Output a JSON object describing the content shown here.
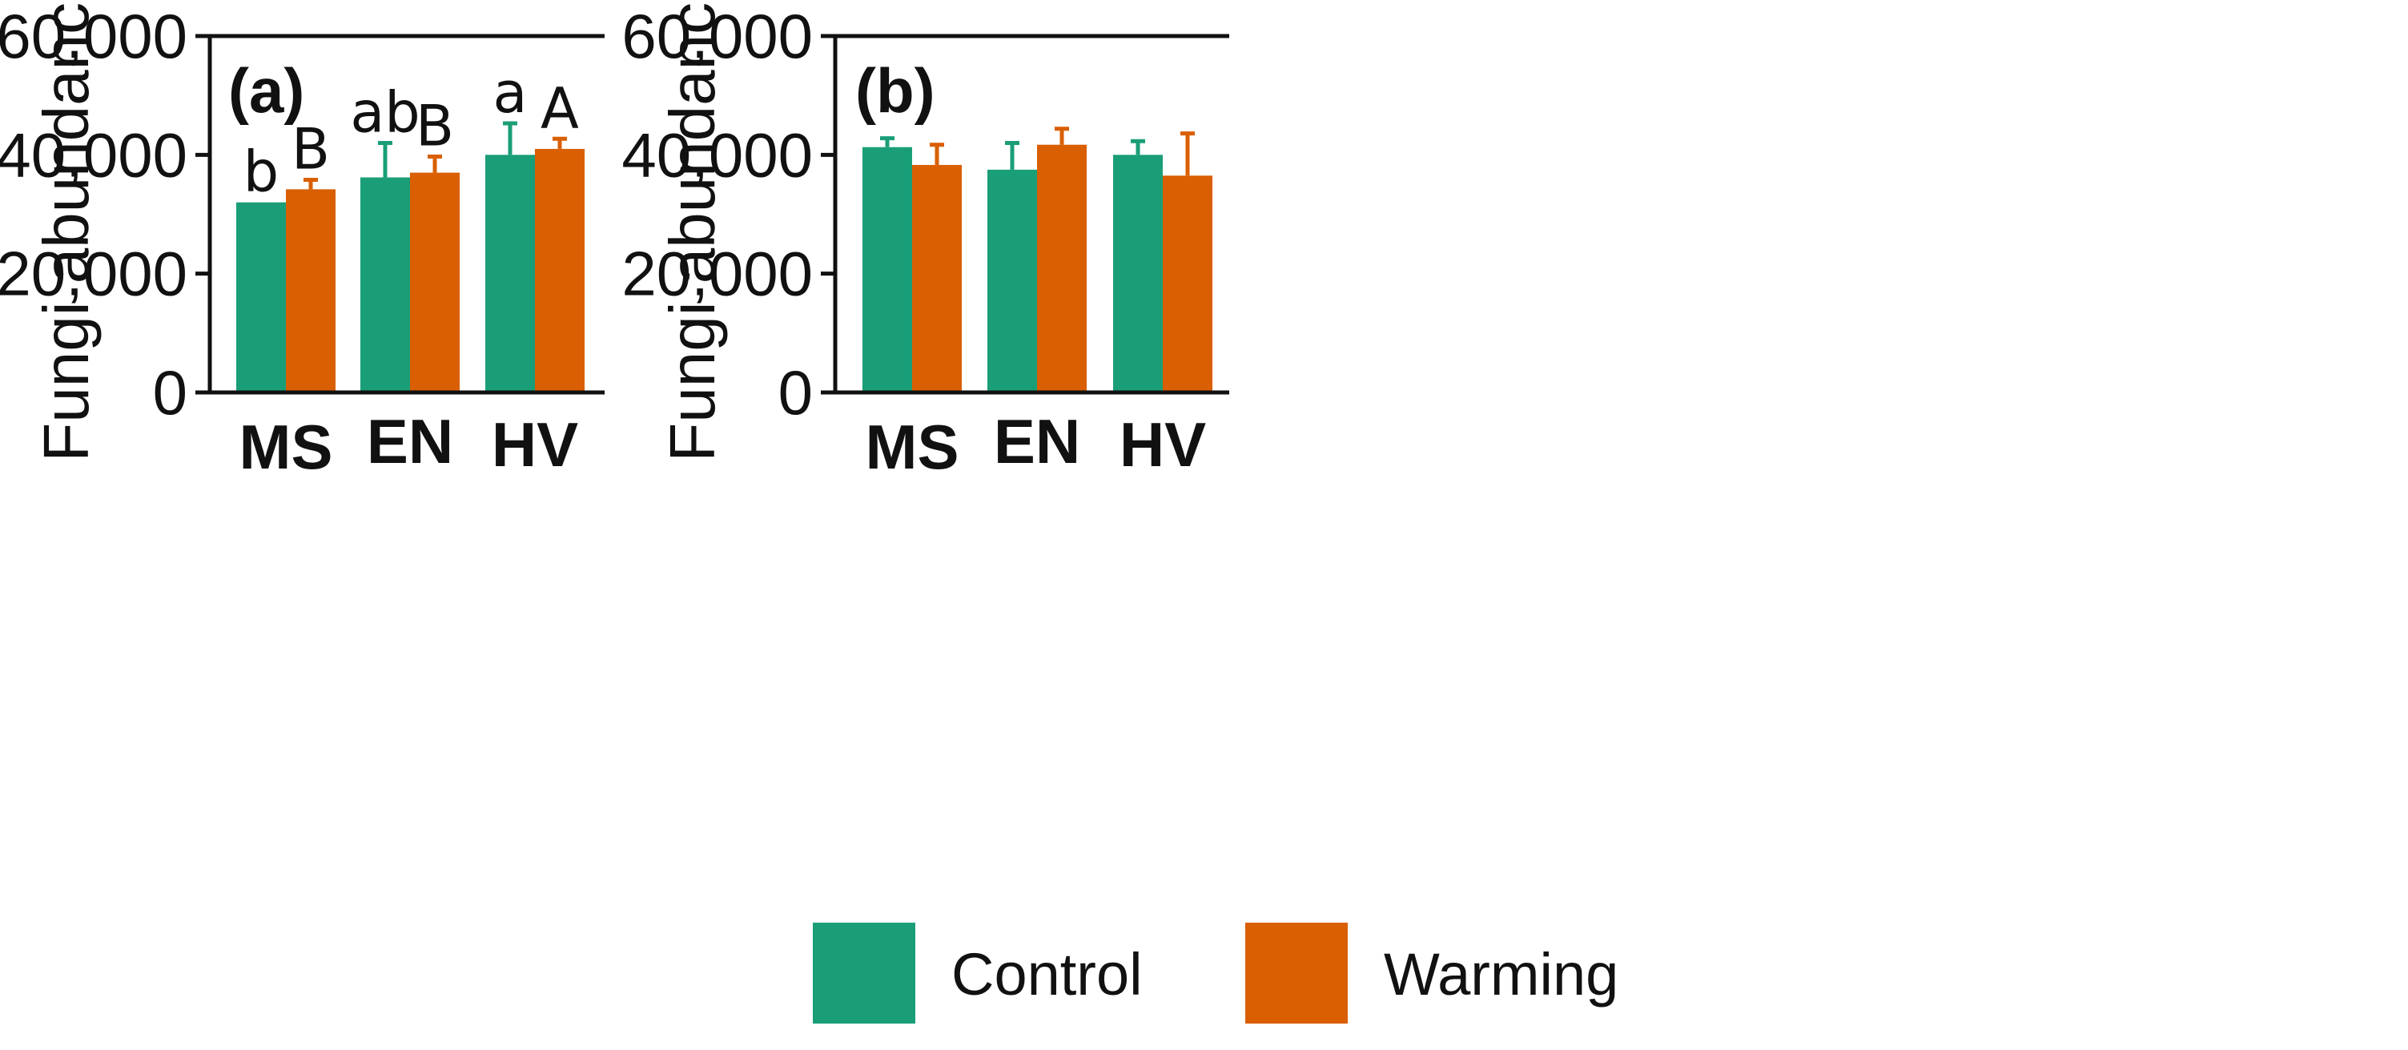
{
  "legend": {
    "items": [
      {
        "label": "Control",
        "color": "#1a9e77"
      },
      {
        "label": "Warming",
        "color": "#d95f02"
      }
    ]
  },
  "chart_data": [
    {
      "type": "bar",
      "panel_label": "(a)",
      "title": "",
      "xlabel": "",
      "ylabel": "Fungi abundance",
      "ylim": [
        0,
        60000
      ],
      "yticks": [
        0,
        20000,
        40000,
        60000
      ],
      "ytick_labels": [
        "0",
        "20,000",
        "40,000",
        "60,000"
      ],
      "categories": [
        "MS",
        "EN",
        "HV"
      ],
      "series": [
        {
          "name": "Control",
          "color": "#1a9e77",
          "values": [
            32000,
            36200,
            40000
          ],
          "errors": [
            0,
            5800,
            5300
          ],
          "sig_labels": [
            "b",
            "ab",
            "a"
          ]
        },
        {
          "name": "Warming",
          "color": "#d95f02",
          "values": [
            34200,
            37000,
            41000
          ],
          "errors": [
            1600,
            2700,
            1700
          ],
          "sig_labels": [
            "B",
            "B",
            "A"
          ]
        }
      ]
    },
    {
      "type": "bar",
      "panel_label": "(b)",
      "title": "",
      "xlabel": "",
      "ylabel": "Fungi abundance",
      "ylim": [
        0,
        60000
      ],
      "yticks": [
        0,
        20000,
        40000,
        60000
      ],
      "ytick_labels": [
        "0",
        "20,000",
        "40,000",
        "60,000"
      ],
      "categories": [
        "MS",
        "EN",
        "HV"
      ],
      "series": [
        {
          "name": "Control",
          "color": "#1a9e77",
          "values": [
            41300,
            37500,
            40000
          ],
          "errors": [
            1500,
            4500,
            2300
          ],
          "sig_labels": [
            "",
            "",
            ""
          ]
        },
        {
          "name": "Warming",
          "color": "#d95f02",
          "values": [
            38300,
            41700,
            36500
          ],
          "errors": [
            3400,
            2700,
            7100
          ],
          "sig_labels": [
            "",
            "",
            ""
          ]
        }
      ]
    }
  ]
}
